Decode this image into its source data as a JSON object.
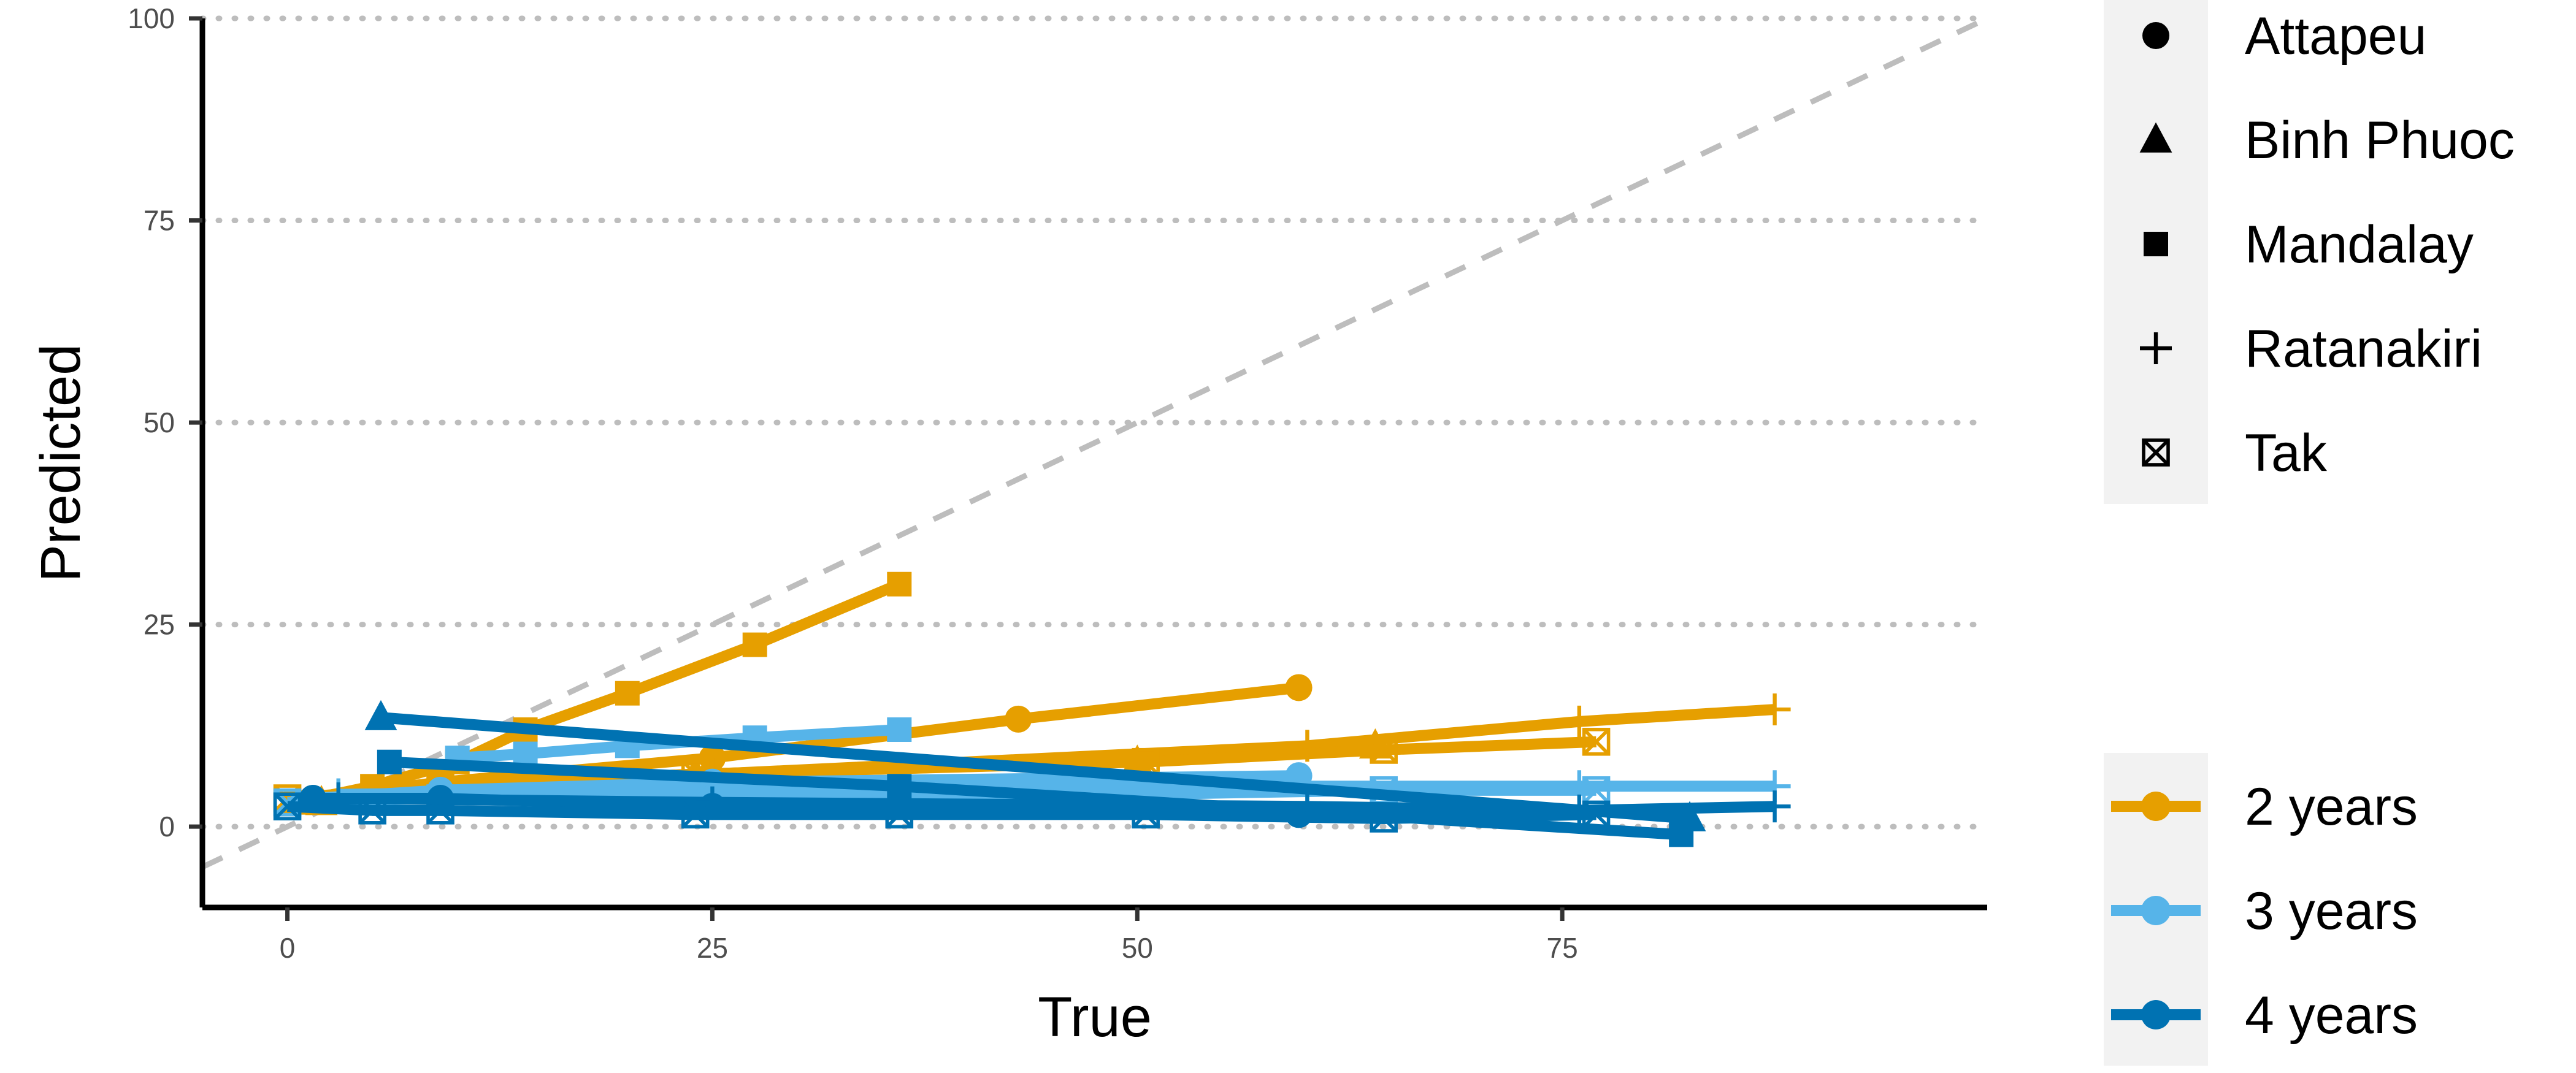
{
  "chart_data": {
    "type": "line",
    "title": "",
    "xlabel": "True",
    "ylabel": "Predicted",
    "xlim": [
      -5,
      100
    ],
    "ylim": [
      -10,
      100
    ],
    "x_ticks": [
      0,
      25,
      50,
      75
    ],
    "y_ticks": [
      0,
      25,
      50,
      75,
      100
    ],
    "grid": "horizontal dotted",
    "reference_line": "y = x (dashed gray)",
    "legend_position": "right",
    "shape_legend": [
      {
        "label": "Attapeu",
        "shape": "circle"
      },
      {
        "label": "Binh Phuoc",
        "shape": "triangle"
      },
      {
        "label": "Mandalay",
        "shape": "square"
      },
      {
        "label": "Ratanakiri",
        "shape": "plus"
      },
      {
        "label": "Tak",
        "shape": "boxed-cross"
      }
    ],
    "color_legend": [
      {
        "label": "2 years",
        "color": "#E69F00"
      },
      {
        "label": "3 years",
        "color": "#56B4E9"
      },
      {
        "label": "4 years",
        "color": "#0072B2"
      }
    ],
    "series": [
      {
        "horizon": "2 years",
        "site": "Attapeu",
        "color": "#E69F00",
        "shape": "circle",
        "x": [
          1.5,
          9,
          25,
          43,
          59.5
        ],
        "y": [
          3.5,
          5.5,
          8.5,
          13.3,
          17.2
        ]
      },
      {
        "horizon": "2 years",
        "site": "Binh Phuoc",
        "color": "#E69F00",
        "shape": "triangle",
        "x": [
          2,
          9,
          24,
          50,
          64
        ],
        "y": [
          3,
          5,
          6.5,
          8,
          10
        ]
      },
      {
        "horizon": "2 years",
        "site": "Mandalay",
        "color": "#E69F00",
        "shape": "square",
        "x": [
          0.5,
          5,
          10,
          14,
          20,
          27.5,
          36
        ],
        "y": [
          3,
          5,
          8,
          12,
          16.5,
          22.5,
          30
        ]
      },
      {
        "horizon": "2 years",
        "site": "Ratanakiri",
        "color": "#E69F00",
        "shape": "plus",
        "x": [
          3,
          25,
          60,
          76,
          87.5
        ],
        "y": [
          4,
          6.5,
          10,
          13,
          14.5
        ]
      },
      {
        "horizon": "2 years",
        "site": "Tak",
        "color": "#E69F00",
        "shape": "boxed-cross",
        "x": [
          0,
          9,
          24,
          50.5,
          64.5,
          77
        ],
        "y": [
          3.5,
          5,
          6.5,
          8,
          9.5,
          10.5
        ]
      },
      {
        "horizon": "3 years",
        "site": "Attapeu",
        "color": "#56B4E9",
        "shape": "circle",
        "x": [
          1.5,
          9,
          25,
          59.5
        ],
        "y": [
          3.5,
          4.5,
          5.5,
          6.3
        ]
      },
      {
        "horizon": "3 years",
        "site": "Mandalay",
        "color": "#56B4E9",
        "shape": "square",
        "x": [
          10,
          14,
          20,
          27.5,
          36
        ],
        "y": [
          8.5,
          9,
          10,
          11,
          12
        ]
      },
      {
        "horizon": "3 years",
        "site": "Ratanakiri",
        "color": "#56B4E9",
        "shape": "plus",
        "x": [
          3,
          25,
          60,
          76,
          87.5
        ],
        "y": [
          4,
          4.5,
          5,
          5,
          5
        ]
      },
      {
        "horizon": "3 years",
        "site": "Tak",
        "color": "#56B4E9",
        "shape": "boxed-cross",
        "x": [
          0,
          9,
          24,
          50.5,
          64.5,
          77
        ],
        "y": [
          3,
          3.5,
          4,
          4,
          4.5,
          4.5
        ]
      },
      {
        "horizon": "4 years",
        "site": "Attapeu",
        "color": "#0072B2",
        "shape": "circle",
        "x": [
          1.5,
          9,
          25,
          59.5
        ],
        "y": [
          3.5,
          3.5,
          2.5,
          1.5
        ]
      },
      {
        "horizon": "4 years",
        "site": "Binh Phuoc",
        "color": "#0072B2",
        "shape": "triangle",
        "x": [
          5.5,
          82.5
        ],
        "y": [
          13.5,
          1
        ]
      },
      {
        "horizon": "4 years",
        "site": "Mandalay",
        "color": "#0072B2",
        "shape": "square",
        "x": [
          6,
          36,
          82
        ],
        "y": [
          8,
          5,
          -1
        ]
      },
      {
        "horizon": "4 years",
        "site": "Ratanakiri",
        "color": "#0072B2",
        "shape": "plus",
        "x": [
          3,
          25,
          60,
          76,
          87.5
        ],
        "y": [
          3.5,
          3,
          2.5,
          2,
          2.5
        ]
      },
      {
        "horizon": "4 years",
        "site": "Tak",
        "color": "#0072B2",
        "shape": "boxed-cross",
        "x": [
          0,
          5,
          9,
          24,
          36,
          50.5,
          64.5,
          77
        ],
        "y": [
          2.5,
          2,
          2,
          1.5,
          1.5,
          1.5,
          1,
          1.5
        ]
      }
    ]
  }
}
